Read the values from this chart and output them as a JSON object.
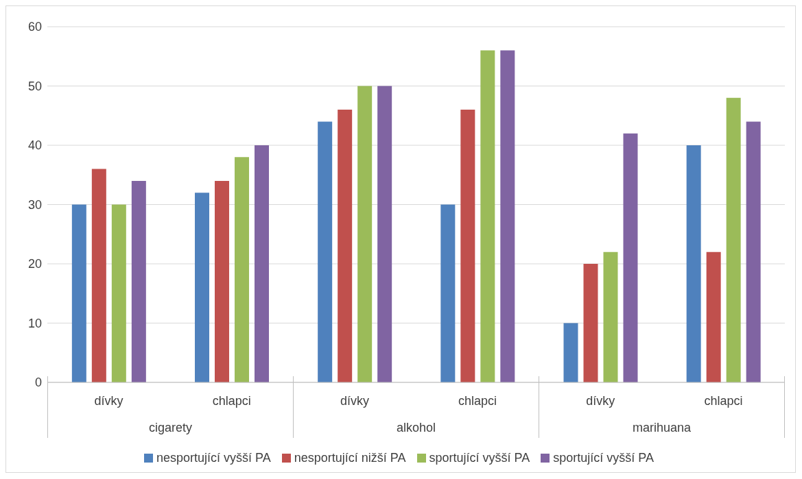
{
  "chart_data": {
    "type": "bar",
    "categories": [
      "dívky",
      "chlapci",
      "dívky",
      "chlapci",
      "dívky",
      "chlapci"
    ],
    "series": [
      {
        "name": "nesportující vyšší PA",
        "color": "#4f81bd",
        "values": [
          30,
          32,
          44,
          30,
          10,
          40
        ]
      },
      {
        "name": "nesportující nižší PA",
        "color": "#c0504d",
        "values": [
          36,
          34,
          46,
          46,
          20,
          22
        ]
      },
      {
        "name": "sportující vyšší PA",
        "color": "#9bbb59",
        "values": [
          30,
          38,
          50,
          56,
          22,
          48
        ]
      },
      {
        "name": "sportující vyšší PA",
        "color": "#8064a2",
        "values": [
          34,
          40,
          50,
          56,
          42,
          44
        ]
      }
    ],
    "annotations": [
      "cigarety",
      "alkohol",
      "marihuana"
    ],
    "ylim": [
      0,
      60
    ],
    "yticks": [
      0,
      10,
      20,
      30,
      40,
      50,
      60
    ],
    "grid": "y",
    "legend": "bottom"
  }
}
